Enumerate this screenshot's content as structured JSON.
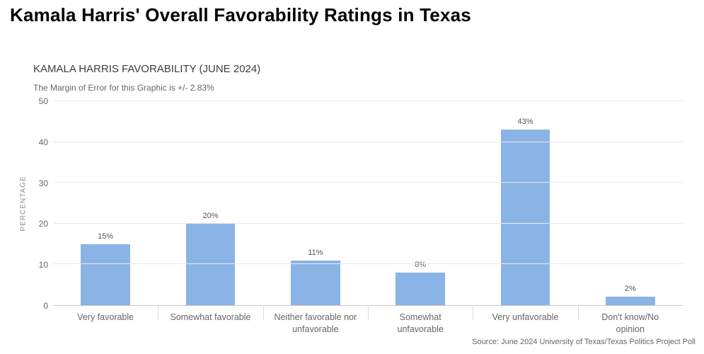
{
  "header": {
    "title": "Kamala Harris' Overall Favorability Ratings in Texas"
  },
  "chart": {
    "subtitle": "KAMALA HARRIS FAVORABILITY (JUNE 2024)",
    "note": "The Margin of Error for this Graphic is +/- 2.83%",
    "source": "Source: June 2024 University of Texas/Texas Politics Project Poll"
  },
  "chart_data": {
    "type": "bar",
    "title": "KAMALA HARRIS FAVORABILITY (JUNE 2024)",
    "categories": [
      "Very favorable",
      "Somewhat favorable",
      "Neither favorable nor unfavorable",
      "Somewhat unfavorable",
      "Very unfavorable",
      "Don't know/No opinion"
    ],
    "values": [
      15,
      20,
      11,
      8,
      43,
      2
    ],
    "data_labels": [
      "15%",
      "20%",
      "11%",
      "8%",
      "43%",
      "2%"
    ],
    "xlabel": "",
    "ylabel": "PERCENTAGE",
    "ylim": [
      0,
      50
    ],
    "yticks": [
      0,
      10,
      20,
      30,
      40,
      50
    ],
    "grid": "horizontal",
    "legend": "none",
    "bar_color": "#8ab4e6"
  }
}
